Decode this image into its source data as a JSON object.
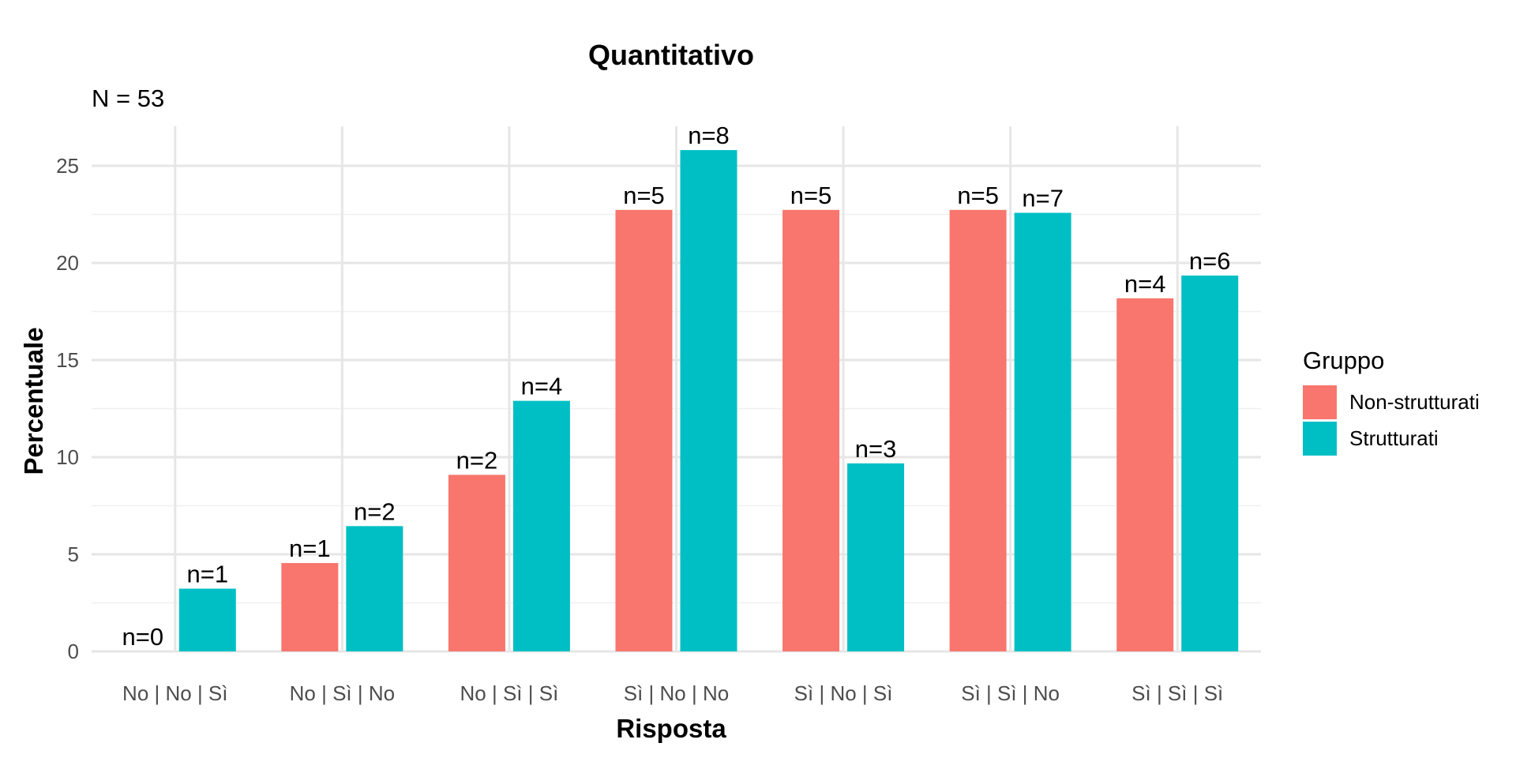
{
  "chart_data": {
    "type": "bar",
    "title": "Quantitativo",
    "subtitle": "N = 53",
    "xlabel": "Risposta",
    "ylabel": "Percentuale",
    "categories": [
      "No | No | Sì",
      "No | Sì | No",
      "No | Sì | Sì",
      "Sì | No | No",
      "Sì | No | Sì",
      "Sì | Sì | No",
      "Sì | Sì | Sì"
    ],
    "ylim": [
      0,
      27
    ],
    "yticks": [
      0,
      5,
      10,
      15,
      20,
      25
    ],
    "grid": true,
    "legend": {
      "title": "Gruppo",
      "position": "right"
    },
    "series": [
      {
        "name": "Non-strutturati",
        "color": "#F8766D",
        "values": [
          0,
          4.55,
          9.09,
          22.73,
          22.73,
          22.73,
          18.18
        ],
        "labels": [
          "n=0",
          "n=1",
          "n=2",
          "n=5",
          "n=5",
          "n=5",
          "n=4"
        ]
      },
      {
        "name": "Strutturati",
        "color": "#00BFC4",
        "values": [
          3.23,
          6.45,
          12.9,
          25.81,
          9.68,
          22.58,
          19.35
        ],
        "labels": [
          "n=1",
          "n=2",
          "n=4",
          "n=8",
          "n=3",
          "n=7",
          "n=6"
        ]
      }
    ]
  }
}
